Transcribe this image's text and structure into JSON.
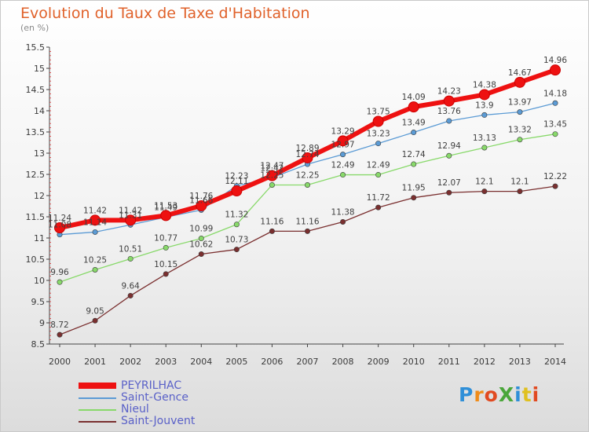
{
  "header": {
    "title": "Evolution du Taux de Taxe d'Habitation",
    "unit_label": "(en %)"
  },
  "brand": {
    "text": "ProXiti",
    "letter_colors": [
      "#2f8fd8",
      "#f08c1a",
      "#e14a21",
      "#4aa63a",
      "#2f8fd8",
      "#e0c020",
      "#e14a21"
    ]
  },
  "chart_data": {
    "type": "line",
    "title": "Evolution du Taux de Taxe d'Habitation",
    "ylabel": "(en %)",
    "xlabel": "",
    "x": [
      2000,
      2001,
      2002,
      2003,
      2004,
      2005,
      2006,
      2007,
      2008,
      2009,
      2010,
      2011,
      2012,
      2013,
      2014
    ],
    "ylim": [
      8.5,
      15.5
    ],
    "yticks": [
      8.5,
      9,
      9.5,
      10,
      10.5,
      11,
      11.5,
      12,
      12.5,
      13,
      13.5,
      14,
      14.5,
      15,
      15.5
    ],
    "grid": false,
    "legend_position": "bottom-left",
    "series": [
      {
        "name": "PEYRILHAC",
        "color": "#ee1111",
        "values": [
          11.24,
          11.42,
          11.42,
          11.53,
          11.76,
          12.11,
          12.47,
          12.89,
          13.29,
          13.75,
          14.09,
          14.23,
          14.38,
          14.67,
          14.96
        ],
        "labels": [
          "11.24",
          "11.42",
          "11.42",
          "11.53",
          "11.76",
          "12.11",
          "12.47",
          "12.89",
          "13.29",
          "13.75",
          "14.09",
          "14.23",
          "14.38",
          "14.67",
          "14.96"
        ]
      },
      {
        "name": "Saint-Gence",
        "color": "#5b9bd5",
        "values": [
          11.08,
          11.14,
          11.31,
          11.49,
          11.66,
          12.23,
          12.42,
          12.74,
          12.97,
          13.23,
          13.49,
          13.76,
          13.9,
          13.97,
          14.18
        ],
        "labels": [
          "11.08",
          "11.14",
          "11.31",
          "11.49",
          "11.66",
          "12.23",
          "12.42",
          "12.74",
          "12.97",
          "13.23",
          "13.49",
          "13.76",
          "13.9",
          "13.97",
          "14.18"
        ]
      },
      {
        "name": "Nieul",
        "color": "#88d96a",
        "values": [
          9.96,
          10.25,
          10.51,
          10.77,
          10.99,
          11.32,
          12.25,
          12.25,
          12.49,
          12.49,
          12.74,
          12.94,
          13.13,
          13.32,
          13.45
        ],
        "labels": [
          "9.96",
          "10.25",
          "10.51",
          "10.77",
          "10.99",
          "11.32",
          "12.25",
          "12.25",
          "12.49",
          "12.49",
          "12.74",
          "12.94",
          "13.13",
          "13.32",
          "13.45"
        ]
      },
      {
        "name": "Saint-Jouvent",
        "color": "#7a2f2f",
        "values": [
          8.72,
          9.05,
          9.64,
          10.15,
          10.62,
          10.73,
          11.16,
          11.16,
          11.38,
          11.72,
          11.95,
          12.07,
          12.1,
          12.1,
          12.22
        ],
        "labels": [
          "8.72",
          "9.05",
          "9.64",
          "10.15",
          "10.62",
          "10.73",
          "11.16",
          "11.16",
          "11.38",
          "11.72",
          "11.95",
          "12.07",
          "12.1",
          "12.1",
          "12.22"
        ]
      }
    ]
  }
}
